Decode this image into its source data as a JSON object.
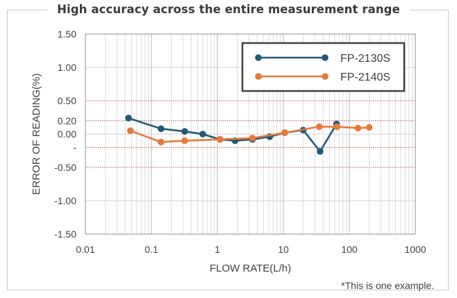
{
  "chart_data": {
    "type": "line",
    "title": "High accuracy across the entire measurement range",
    "xlabel": "FLOW RATE(L/h)",
    "ylabel": "ERROR OF READING(%)",
    "x_scale": "log",
    "xlim": [
      0.01,
      1000
    ],
    "ylim": [
      -1.5,
      1.5
    ],
    "x_ticks": [
      "0.01",
      "0.1",
      "1",
      "10",
      "100",
      "1000"
    ],
    "y_ticks": [
      {
        "value": 1.5,
        "label": "1.50"
      },
      {
        "value": 1.0,
        "label": "1.00"
      },
      {
        "value": 0.5,
        "label": "0.50"
      },
      {
        "value": 0.2,
        "label": "0.20"
      },
      {
        "value": 0.0,
        "label": "0.00"
      },
      {
        "value": -0.2,
        "label": "-"
      },
      {
        "value": -0.5,
        "label": "-0.50"
      },
      {
        "value": -1.0,
        "label": "-1.00"
      },
      {
        "value": -1.5,
        "label": "-1.50"
      }
    ],
    "reference_lines": [
      0.5,
      0.2,
      -0.2,
      -0.5
    ],
    "grid": true,
    "legend_position": "top-right",
    "series": [
      {
        "name": "FP-2130S",
        "color": "#1f5a78",
        "x": [
          0.045,
          0.14,
          0.32,
          0.6,
          1.1,
          1.85,
          3.4,
          6.2,
          10.5,
          20,
          36,
          64
        ],
        "y": [
          0.24,
          0.08,
          0.04,
          0.0,
          -0.08,
          -0.1,
          -0.08,
          -0.04,
          0.02,
          0.06,
          -0.26,
          0.15
        ]
      },
      {
        "name": "FP-2140S",
        "color": "#e8793a",
        "x": [
          0.048,
          0.14,
          0.32,
          1.1,
          3.4,
          10.5,
          35,
          65,
          135,
          200
        ],
        "y": [
          0.05,
          -0.12,
          -0.1,
          -0.08,
          -0.06,
          0.02,
          0.11,
          0.11,
          0.09,
          0.1
        ]
      }
    ]
  },
  "footnote": "*This is one example."
}
